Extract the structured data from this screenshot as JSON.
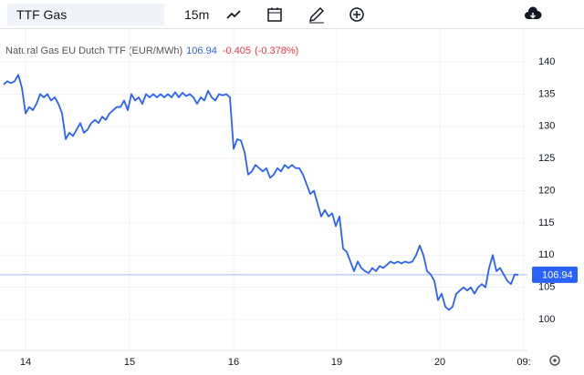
{
  "toolbar": {
    "symbol": "TTF Gas",
    "interval": "15m"
  },
  "chart_data": {
    "type": "line",
    "x": [
      -6,
      -5,
      -4,
      -3,
      -2,
      -1,
      0,
      1,
      2,
      3,
      4,
      5,
      6,
      7,
      8,
      9,
      10,
      11,
      12,
      13,
      14,
      15,
      16,
      17,
      18,
      19,
      20,
      21,
      22,
      23,
      24,
      25,
      26,
      27,
      28,
      29,
      30,
      31,
      32,
      33,
      34,
      35,
      36,
      37,
      38,
      39,
      40,
      41,
      42,
      43,
      44,
      45,
      46,
      47,
      48,
      49,
      50,
      51,
      52,
      53,
      54,
      55,
      56,
      57,
      58,
      59,
      60,
      61,
      62,
      63,
      64,
      65,
      66,
      67,
      68,
      69,
      70,
      71,
      72,
      73,
      74,
      75,
      76,
      77,
      78,
      79,
      80,
      81,
      82,
      83,
      84,
      85,
      86,
      87,
      88,
      89,
      90,
      91,
      92,
      93,
      94,
      95,
      96,
      97,
      98,
      99,
      100,
      101,
      102,
      103,
      104,
      105,
      106,
      107,
      108,
      109,
      110,
      111,
      112,
      113,
      114,
      115,
      116,
      117,
      118,
      119,
      120,
      121,
      122,
      123,
      124,
      125,
      126,
      127,
      128,
      129,
      130,
      131,
      132,
      133,
      134,
      135
    ],
    "series": [
      {
        "name": "Natural Gas EU Dutch TTF (EUR/MWh)",
        "color": "#2962ff",
        "values": [
          136.5,
          137,
          136.7,
          137,
          138,
          136,
          132,
          133,
          132.5,
          133.5,
          135,
          134.5,
          135,
          134,
          134.5,
          133.5,
          132,
          128,
          129,
          128.5,
          129.5,
          130.5,
          129,
          129.5,
          130.5,
          131,
          130.5,
          131.5,
          131,
          132,
          132.5,
          133,
          133,
          134,
          132.5,
          135,
          134,
          134.5,
          133.5,
          135,
          134.5,
          135,
          134.5,
          135,
          134.5,
          135,
          134.5,
          135.3,
          134.5,
          135.2,
          134.7,
          135,
          134.5,
          133.5,
          134.5,
          134,
          135.5,
          134.5,
          134,
          135,
          134.8,
          135,
          134.5,
          126.5,
          128,
          127.8,
          126,
          122.5,
          123,
          124,
          123.5,
          123,
          123.5,
          122,
          122.5,
          123.5,
          123,
          124,
          123.5,
          124,
          123.5,
          123.5,
          122.5,
          121,
          119.5,
          120,
          118,
          116,
          117,
          116,
          116.5,
          114.5,
          116,
          111,
          110.5,
          109,
          107.5,
          109,
          108,
          107.5,
          107.2,
          108,
          107.5,
          108.3,
          108,
          108.5,
          109,
          108.7,
          109,
          108.7,
          109,
          108.8,
          109,
          110,
          111.5,
          110,
          107.5,
          107,
          106,
          103,
          104,
          102,
          101.5,
          102,
          104,
          104.5,
          105,
          104.5,
          105,
          104,
          105,
          105.5,
          105,
          108,
          110,
          107.5,
          108,
          107,
          106,
          105.5,
          107,
          106.94
        ]
      }
    ],
    "last_value": 106.94,
    "change": -0.405,
    "change_percent": "(-0.378%)",
    "last_line_color": "#2962ff",
    "xlim": [
      -7,
      137.5
    ],
    "xticks": [
      {
        "value": 0,
        "label": "14"
      },
      {
        "value": 28.5,
        "label": "15"
      },
      {
        "value": 57,
        "label": "16"
      },
      {
        "value": 85.25,
        "label": "19"
      },
      {
        "value": 113.5,
        "label": "20"
      },
      {
        "value": 136.5,
        "label": "09:"
      }
    ],
    "ylim": [
      95.2,
      143.96
    ],
    "yticks": [
      100,
      105,
      110,
      115,
      120,
      125,
      130,
      135,
      140
    ],
    "grid": true
  }
}
